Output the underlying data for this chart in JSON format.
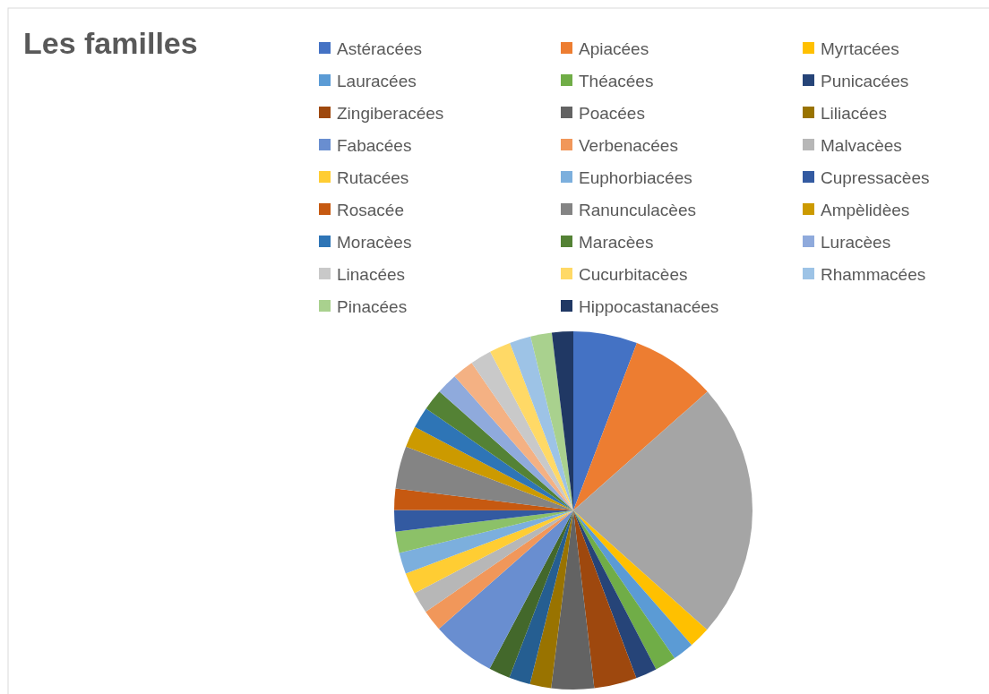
{
  "chart_data": {
    "type": "pie",
    "title": "Les familles",
    "legend": "top",
    "categories": [
      "Astéracées",
      "Apiacées",
      null,
      "Myrtacées",
      "Lauracées",
      "Théacées",
      "Punicacées",
      "Zingiberacées",
      "Poacées",
      "Liliacées",
      null,
      null,
      "Fabacées",
      "Verbenacées",
      "Malvacèes",
      "Rutacées",
      "Euphorbiacées",
      null,
      "Cupressacèes",
      "Rosacée",
      "Ranunculacèes",
      "Ampèlidèes",
      "Moracèes",
      "Maracèes",
      "Luracèes",
      null,
      "Linacées",
      "Cucurbitacèes",
      "Rhammacées",
      "Pinacées",
      "Hippocastanacées"
    ],
    "values": [
      5.77,
      7.69,
      23.14,
      1.92,
      1.92,
      1.92,
      1.92,
      3.85,
      3.85,
      1.92,
      1.92,
      1.92,
      5.77,
      1.92,
      1.92,
      1.92,
      1.92,
      1.92,
      1.92,
      1.92,
      3.85,
      1.92,
      1.92,
      1.92,
      1.92,
      1.92,
      1.92,
      1.92,
      1.92,
      1.92,
      1.92
    ],
    "colors": [
      "#4472c4",
      "#ed7d31",
      "#a5a5a5",
      "#ffc000",
      "#5b9bd5",
      "#70ad47",
      "#264478",
      "#9e480e",
      "#636363",
      "#997300",
      "#255e91",
      "#43682b",
      "#698ed0",
      "#f1975a",
      "#b7b7b7",
      "#ffcd33",
      "#7cafdd",
      "#8cc168",
      "#335aa1",
      "#c65911",
      "#848484",
      "#cc9a00",
      "#2e75b6",
      "#548235",
      "#8faadc",
      "#f4b183",
      "#c9c9c9",
      "#ffd966",
      "#9dc3e6",
      "#a9d18e",
      "#203864"
    ]
  }
}
